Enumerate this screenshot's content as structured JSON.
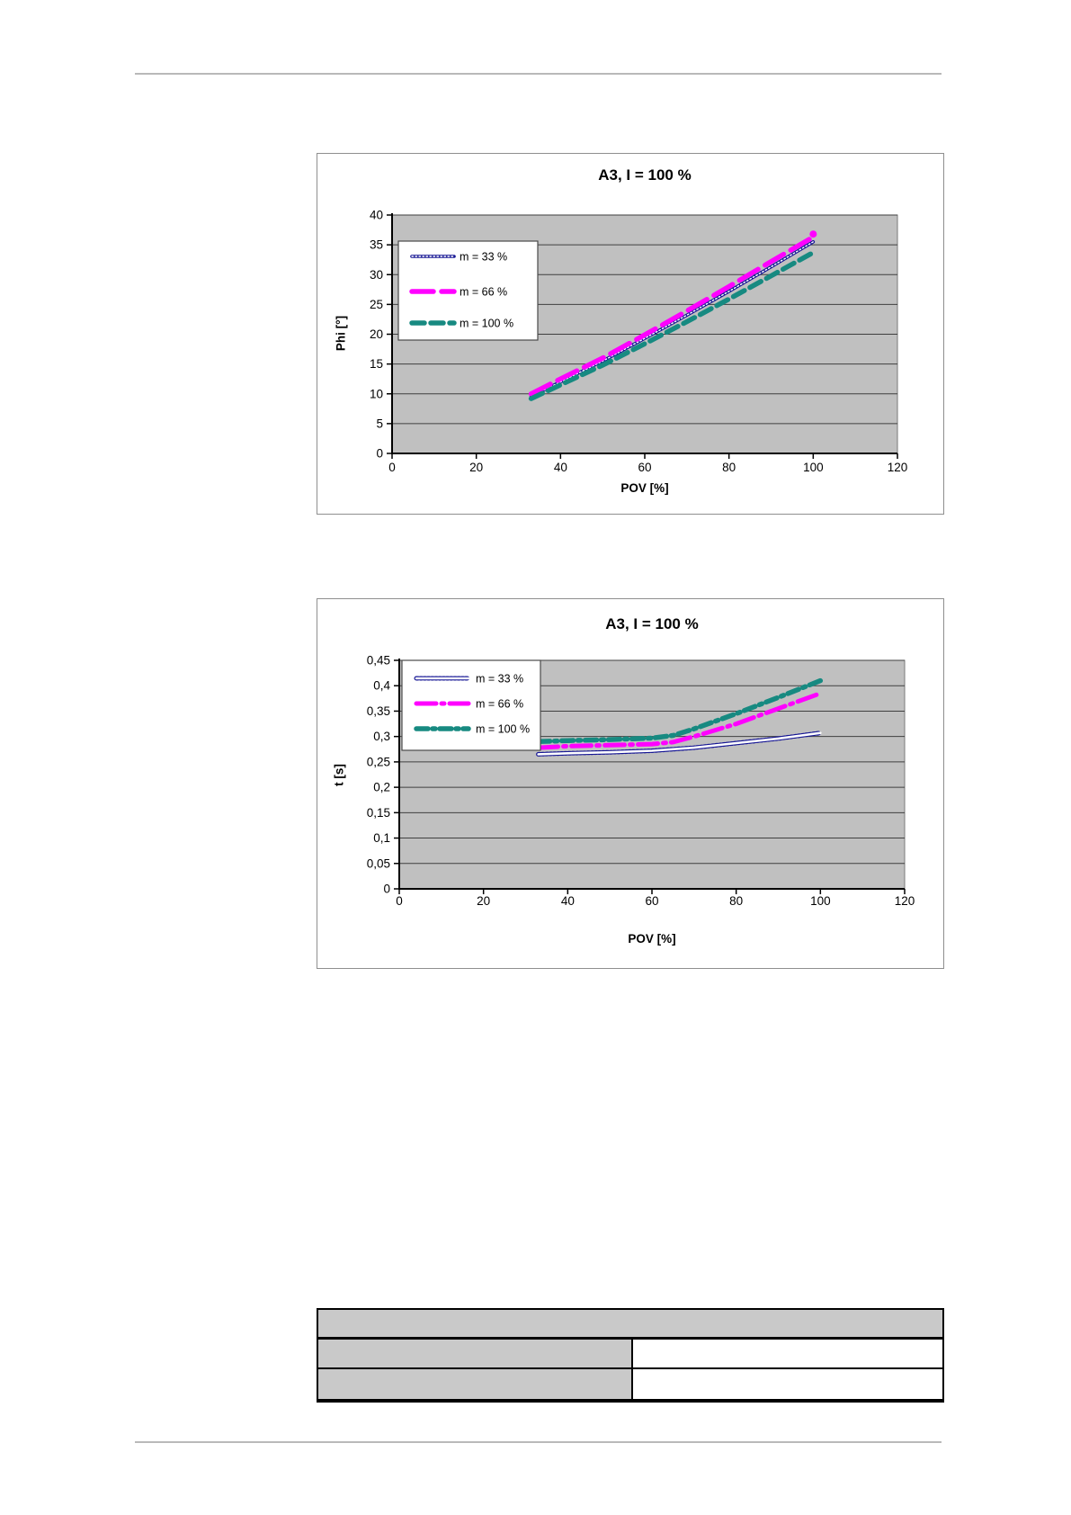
{
  "colors": {
    "navy": "#161694",
    "magenta": "#ff00ff",
    "teal": "#178a81",
    "plot_bg": "#c0c0c0",
    "gridline": "#3f3f3f",
    "table_gray": "#c9c9c9",
    "rule_gray": "#b9b9b9"
  },
  "chart_data": [
    {
      "type": "line",
      "title": "A3,  I = 100 %",
      "xlabel": "POV [%]",
      "ylabel": "Phi [°]",
      "xlim": [
        0,
        120
      ],
      "ylim": [
        0,
        40
      ],
      "x_ticks": [
        "0",
        "20",
        "40",
        "60",
        "80",
        "100",
        "120"
      ],
      "y_ticks": [
        "0",
        "5",
        "10",
        "15",
        "20",
        "25",
        "30",
        "35",
        "40"
      ],
      "grid": "horizontal",
      "legend_position": "top-left-inside",
      "series": [
        {
          "name": "m = 33 %",
          "style": "hatched-navy",
          "color": "#161694",
          "x": [
            33,
            40,
            50,
            60,
            70,
            80,
            90,
            100
          ],
          "y": [
            9.6,
            12.0,
            15.5,
            19.3,
            23.2,
            27.2,
            31.3,
            35.5
          ]
        },
        {
          "name": "m = 66 %",
          "style": "dashed-magenta",
          "color": "#ff00ff",
          "x": [
            33,
            40,
            50,
            60,
            70,
            80,
            90,
            100
          ],
          "y": [
            10.0,
            12.5,
            16.0,
            19.9,
            23.9,
            28.0,
            32.2,
            36.3
          ],
          "end_dot": [
            100,
            36.8
          ]
        },
        {
          "name": "m = 100 %",
          "style": "dashed-teal",
          "color": "#178a81",
          "x": [
            33,
            40,
            50,
            60,
            70,
            80,
            90,
            100
          ],
          "y": [
            9.2,
            11.5,
            14.8,
            18.4,
            22.1,
            25.9,
            29.8,
            33.7
          ]
        }
      ]
    },
    {
      "type": "line",
      "title": "A3, I = 100 %",
      "xlabel": "POV [%]",
      "ylabel": "t [s]",
      "xlim": [
        0,
        120
      ],
      "ylim": [
        0,
        0.45
      ],
      "x_ticks": [
        "0",
        "20",
        "40",
        "60",
        "80",
        "100",
        "120"
      ],
      "y_ticks": [
        "0",
        "0,05",
        "0,1",
        "0,15",
        "0,2",
        "0,25",
        "0,3",
        "0,35",
        "0,4",
        "0,45"
      ],
      "grid": "horizontal",
      "legend_position": "top-left-inside",
      "series": [
        {
          "name": "m = 33 %",
          "style": "tube-navy",
          "color": "#161694",
          "x": [
            33,
            40,
            50,
            60,
            70,
            80,
            90,
            100
          ],
          "y": [
            0.265,
            0.267,
            0.269,
            0.272,
            0.278,
            0.287,
            0.296,
            0.307
          ]
        },
        {
          "name": "m = 66 %",
          "style": "dotdash-magenta",
          "color": "#ff00ff",
          "x": [
            33,
            40,
            50,
            60,
            65,
            70,
            80,
            90,
            100
          ],
          "y": [
            0.278,
            0.281,
            0.283,
            0.285,
            0.289,
            0.3,
            0.325,
            0.355,
            0.385
          ]
        },
        {
          "name": "m = 100 %",
          "style": "dotdash-teal",
          "color": "#178a81",
          "x": [
            33,
            40,
            50,
            60,
            65,
            70,
            80,
            90,
            100
          ],
          "y": [
            0.29,
            0.292,
            0.294,
            0.297,
            0.302,
            0.315,
            0.345,
            0.377,
            0.41
          ]
        }
      ]
    }
  ],
  "table": {
    "header": "",
    "rows": [
      {
        "left": "",
        "right": ""
      },
      {
        "left": "",
        "right": ""
      }
    ]
  }
}
